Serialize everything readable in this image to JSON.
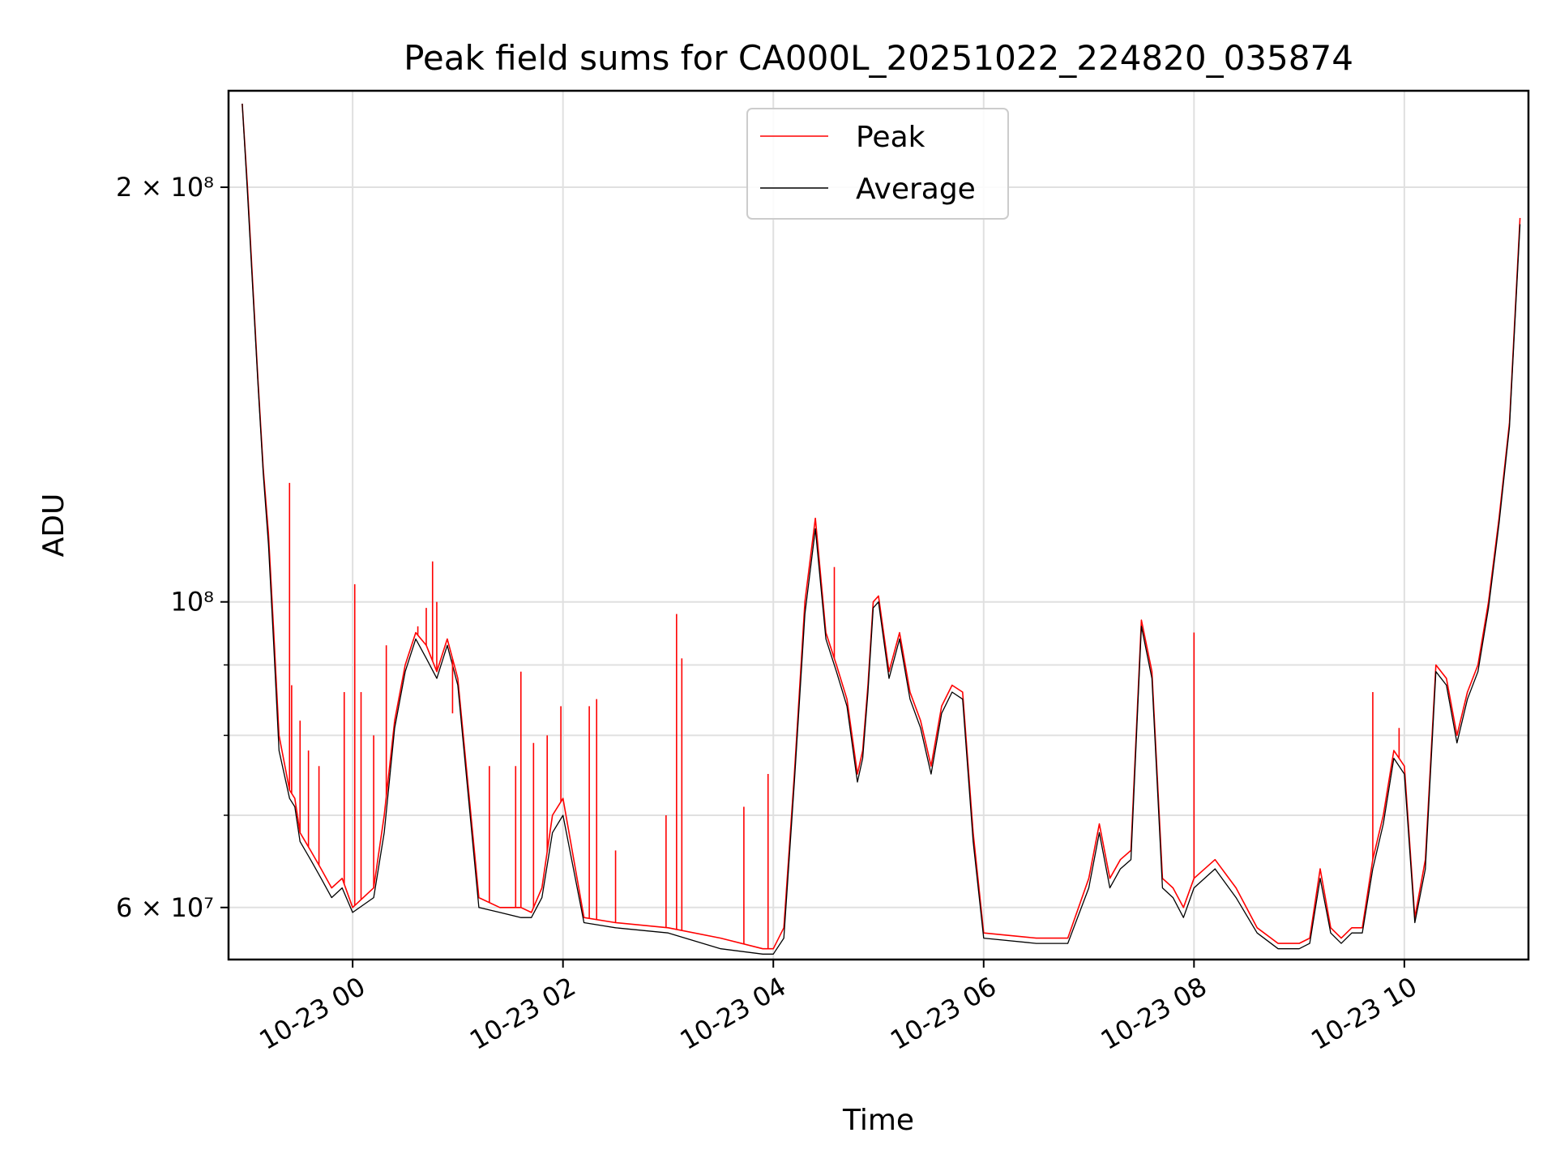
{
  "chart_data": {
    "type": "line",
    "title": "Peak field sums for CA000L_20251022_224820_035874",
    "xlabel": "Time",
    "ylabel": "ADU",
    "yscale": "log",
    "grid": true,
    "legend_position": "top-center",
    "x_unit": "hours since 10-23 00:00",
    "xlim": [
      -1.18,
      11.18
    ],
    "ylim": [
      55000000,
      235000000
    ],
    "x_ticks": [
      0,
      2,
      4,
      6,
      8,
      10
    ],
    "x_tick_labels": [
      "10-23 00",
      "10-23 02",
      "10-23 04",
      "10-23 06",
      "10-23 08",
      "10-23 10"
    ],
    "y_ticks": [
      60000000,
      100000000,
      200000000
    ],
    "y_tick_labels": [
      "6 × 10⁷",
      "10⁸",
      "2 × 10⁸"
    ],
    "y_minor_ticks": [
      70000000,
      80000000,
      90000000
    ],
    "series": [
      {
        "name": "Peak",
        "color": "#ff0000",
        "x": [
          -1.05,
          -1.0,
          -0.9,
          -0.85,
          -0.8,
          -0.75,
          -0.7,
          -0.6,
          -0.55,
          -0.5,
          -0.4,
          -0.3,
          -0.2,
          -0.1,
          0.0,
          0.2,
          0.3,
          0.4,
          0.5,
          0.6,
          0.7,
          0.8,
          0.9,
          1.0,
          1.2,
          1.4,
          1.6,
          1.7,
          1.8,
          1.9,
          2.0,
          2.2,
          2.5,
          3.0,
          3.5,
          3.9,
          4.0,
          4.1,
          4.2,
          4.3,
          4.4,
          4.5,
          4.6,
          4.7,
          4.8,
          4.85,
          4.9,
          4.95,
          5.0,
          5.1,
          5.2,
          5.3,
          5.4,
          5.5,
          5.6,
          5.7,
          5.8,
          5.9,
          6.0,
          6.5,
          6.8,
          7.0,
          7.1,
          7.2,
          7.3,
          7.4,
          7.5,
          7.6,
          7.7,
          7.8,
          7.9,
          8.0,
          8.2,
          8.4,
          8.6,
          8.8,
          9.0,
          9.1,
          9.2,
          9.3,
          9.4,
          9.5,
          9.6,
          9.7,
          9.8,
          9.9,
          10.0,
          10.1,
          10.2,
          10.3,
          10.4,
          10.5,
          10.6,
          10.7,
          10.8,
          10.9,
          11.0,
          11.1
        ],
        "values": [
          230000000,
          200000000,
          145000000,
          125000000,
          112000000,
          95000000,
          80000000,
          73000000,
          72000000,
          68000000,
          66000000,
          64000000,
          62000000,
          63000000,
          60000000,
          62000000,
          70000000,
          82000000,
          90000000,
          95000000,
          93000000,
          89000000,
          94000000,
          88000000,
          61000000,
          60000000,
          60000000,
          59500000,
          62000000,
          70000000,
          72000000,
          59000000,
          58500000,
          58000000,
          57000000,
          56000000,
          56000000,
          58000000,
          75000000,
          100000000,
          115000000,
          95000000,
          90000000,
          85000000,
          75000000,
          78000000,
          87000000,
          100000000,
          101000000,
          89000000,
          95000000,
          86000000,
          82000000,
          76000000,
          84000000,
          87000000,
          86000000,
          68000000,
          57500000,
          57000000,
          57000000,
          63000000,
          69000000,
          63000000,
          65000000,
          66000000,
          97000000,
          89000000,
          63000000,
          62000000,
          60000000,
          63000000,
          65000000,
          62000000,
          58000000,
          56500000,
          56500000,
          57000000,
          64000000,
          58000000,
          57000000,
          58000000,
          58000000,
          65000000,
          70000000,
          78000000,
          76000000,
          59000000,
          65000000,
          90000000,
          88000000,
          80000000,
          86000000,
          90000000,
          100000000,
          115000000,
          135000000,
          190000000
        ],
        "spikes": [
          {
            "x": -0.6,
            "value": 122000000
          },
          {
            "x": -0.58,
            "value": 87000000
          },
          {
            "x": -0.5,
            "value": 82000000
          },
          {
            "x": -0.42,
            "value": 78000000
          },
          {
            "x": -0.32,
            "value": 76000000
          },
          {
            "x": -0.08,
            "value": 86000000
          },
          {
            "x": 0.02,
            "value": 103000000
          },
          {
            "x": 0.08,
            "value": 86000000
          },
          {
            "x": 0.2,
            "value": 80000000
          },
          {
            "x": 0.32,
            "value": 93000000
          },
          {
            "x": 0.62,
            "value": 96000000
          },
          {
            "x": 0.7,
            "value": 99000000
          },
          {
            "x": 0.76,
            "value": 107000000
          },
          {
            "x": 0.8,
            "value": 100000000
          },
          {
            "x": 0.95,
            "value": 83000000
          },
          {
            "x": 1.3,
            "value": 76000000
          },
          {
            "x": 1.55,
            "value": 76000000
          },
          {
            "x": 1.6,
            "value": 89000000
          },
          {
            "x": 1.72,
            "value": 79000000
          },
          {
            "x": 1.85,
            "value": 80000000
          },
          {
            "x": 1.98,
            "value": 84000000
          },
          {
            "x": 2.25,
            "value": 84000000
          },
          {
            "x": 2.32,
            "value": 85000000
          },
          {
            "x": 2.5,
            "value": 66000000
          },
          {
            "x": 2.98,
            "value": 70000000
          },
          {
            "x": 3.08,
            "value": 98000000
          },
          {
            "x": 3.13,
            "value": 91000000
          },
          {
            "x": 3.72,
            "value": 71000000
          },
          {
            "x": 3.95,
            "value": 75000000
          },
          {
            "x": 4.58,
            "value": 106000000
          },
          {
            "x": 8.0,
            "value": 95000000
          },
          {
            "x": 9.95,
            "value": 81000000
          },
          {
            "x": 9.7,
            "value": 86000000
          }
        ]
      },
      {
        "name": "Average",
        "color": "#000000",
        "x": [
          -1.05,
          -1.0,
          -0.9,
          -0.85,
          -0.8,
          -0.75,
          -0.7,
          -0.6,
          -0.55,
          -0.5,
          -0.4,
          -0.3,
          -0.2,
          -0.1,
          0.0,
          0.2,
          0.3,
          0.4,
          0.5,
          0.6,
          0.7,
          0.8,
          0.9,
          1.0,
          1.2,
          1.4,
          1.6,
          1.7,
          1.8,
          1.9,
          2.0,
          2.2,
          2.5,
          3.0,
          3.5,
          3.9,
          4.0,
          4.1,
          4.2,
          4.3,
          4.4,
          4.5,
          4.6,
          4.7,
          4.8,
          4.85,
          4.9,
          4.95,
          5.0,
          5.1,
          5.2,
          5.3,
          5.4,
          5.5,
          5.6,
          5.7,
          5.8,
          5.9,
          6.0,
          6.5,
          6.8,
          7.0,
          7.1,
          7.2,
          7.3,
          7.4,
          7.5,
          7.6,
          7.7,
          7.8,
          7.9,
          8.0,
          8.2,
          8.4,
          8.6,
          8.8,
          9.0,
          9.1,
          9.2,
          9.3,
          9.4,
          9.5,
          9.6,
          9.7,
          9.8,
          9.9,
          10.0,
          10.1,
          10.2,
          10.3,
          10.4,
          10.5,
          10.6,
          10.7,
          10.8,
          10.9,
          11.0,
          11.1
        ],
        "values": [
          230000000,
          198000000,
          144000000,
          124000000,
          110000000,
          93000000,
          78000000,
          72000000,
          71000000,
          67000000,
          65000000,
          63000000,
          61000000,
          62000000,
          59500000,
          61000000,
          68000000,
          81000000,
          89000000,
          94000000,
          91000000,
          88000000,
          93000000,
          87000000,
          60000000,
          59500000,
          59000000,
          59000000,
          61000000,
          68000000,
          70000000,
          58500000,
          58000000,
          57500000,
          56000000,
          55500000,
          55500000,
          57000000,
          74000000,
          98000000,
          113000000,
          94000000,
          89000000,
          84000000,
          74000000,
          77000000,
          86000000,
          99000000,
          100000000,
          88000000,
          94000000,
          85000000,
          81000000,
          75000000,
          83000000,
          86000000,
          85000000,
          67000000,
          57000000,
          56500000,
          56500000,
          62000000,
          68000000,
          62000000,
          64000000,
          65000000,
          96000000,
          88000000,
          62000000,
          61000000,
          59000000,
          62000000,
          64000000,
          61000000,
          57500000,
          56000000,
          56000000,
          56500000,
          63000000,
          57500000,
          56500000,
          57500000,
          57500000,
          64000000,
          69000000,
          77000000,
          75000000,
          58500000,
          64000000,
          89000000,
          87000000,
          79000000,
          85000000,
          89000000,
          99000000,
          114000000,
          134000000,
          188000000
        ]
      }
    ]
  }
}
